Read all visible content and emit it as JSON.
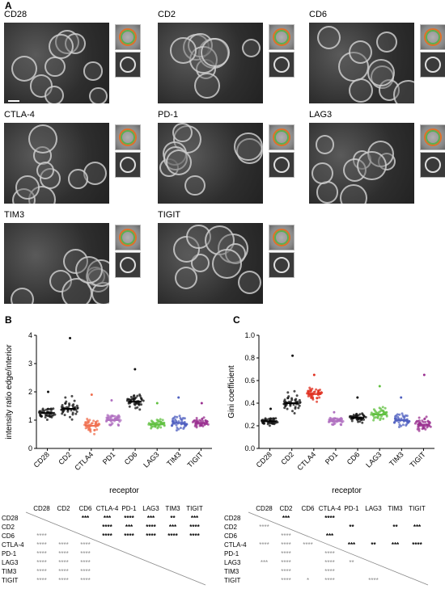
{
  "figure_labels": {
    "a": "A",
    "b": "B",
    "c": "C"
  },
  "panel_a": {
    "images": [
      {
        "name": "CD28"
      },
      {
        "name": "CD2"
      },
      {
        "name": "CD6"
      },
      {
        "name": "CTLA-4"
      },
      {
        "name": "PD-1"
      },
      {
        "name": "LAG3"
      },
      {
        "name": "TIM3"
      },
      {
        "name": "TIGIT"
      }
    ]
  },
  "chart_data": [
    {
      "type": "scatter",
      "panel": "B",
      "ylabel": "intensity ratio edge/interior",
      "xlabel": "receptor",
      "ylim": [
        0,
        4
      ],
      "yticks": [
        "0",
        "1",
        "2",
        "3",
        "4"
      ],
      "categories": [
        "CD28",
        "CD2",
        "CTLA4",
        "PD1",
        "CD6",
        "LAG3",
        "TIM3",
        "TIGIT"
      ],
      "colors": [
        "#111111",
        "#111111",
        "#f07050",
        "#b070c0",
        "#111111",
        "#60c040",
        "#5060c0",
        "#9a3090"
      ],
      "means": [
        1.25,
        1.4,
        0.8,
        1.0,
        1.65,
        0.85,
        0.9,
        0.9
      ],
      "spread": [
        0.3,
        0.55,
        0.35,
        0.3,
        0.45,
        0.25,
        0.3,
        0.25
      ],
      "max": [
        2.0,
        3.9,
        1.9,
        1.7,
        2.8,
        1.6,
        1.8,
        1.6
      ]
    },
    {
      "type": "scatter",
      "panel": "C",
      "ylabel": "Gini coefficient",
      "xlabel": "receptor",
      "ylim": [
        0,
        1.0
      ],
      "yticks": [
        "0.0",
        "0.2",
        "0.4",
        "0.6",
        "0.8",
        "1.0"
      ],
      "categories": [
        "CD28",
        "CD2",
        "CTLA4",
        "PD1",
        "CD6",
        "LAG3",
        "TIM3",
        "TIGIT"
      ],
      "colors": [
        "#111111",
        "#111111",
        "#e03020",
        "#b070c0",
        "#111111",
        "#60c040",
        "#5060c0",
        "#9a3090"
      ],
      "means": [
        0.24,
        0.4,
        0.48,
        0.24,
        0.27,
        0.3,
        0.25,
        0.21
      ],
      "spread": [
        0.05,
        0.13,
        0.08,
        0.05,
        0.07,
        0.09,
        0.07,
        0.09
      ],
      "max": [
        0.35,
        0.82,
        0.65,
        0.32,
        0.45,
        0.55,
        0.45,
        0.65
      ]
    }
  ],
  "sig_b": {
    "cols": [
      "CD28",
      "CD2",
      "CD6",
      "CTLA-4",
      "PD-1",
      "LAG3",
      "TIM3",
      "TIGIT"
    ],
    "rows": [
      {
        "label": "CD28",
        "cells": [
          "",
          "",
          "***",
          "***",
          "****",
          "***",
          "**",
          "***"
        ]
      },
      {
        "label": "CD2",
        "cells": [
          "",
          "",
          "",
          "****",
          "***",
          "****",
          "***",
          "****"
        ]
      },
      {
        "label": "CD6",
        "cells": [
          "****",
          "",
          "",
          "****",
          "****",
          "****",
          "****",
          "****"
        ]
      },
      {
        "label": "CTLA-4",
        "cells": [
          "****",
          "****",
          "****",
          "",
          "",
          "",
          "",
          ""
        ]
      },
      {
        "label": "PD-1",
        "cells": [
          "****",
          "****",
          "****",
          "",
          "",
          "",
          "",
          ""
        ]
      },
      {
        "label": "LAG3",
        "cells": [
          "****",
          "****",
          "****",
          "",
          "",
          "",
          "",
          ""
        ]
      },
      {
        "label": "TIM3",
        "cells": [
          "****",
          "****",
          "****",
          "",
          "",
          "",
          "",
          ""
        ]
      },
      {
        "label": "TIGIT",
        "cells": [
          "****",
          "****",
          "****",
          "",
          "",
          "",
          "",
          ""
        ]
      }
    ]
  },
  "sig_c": {
    "cols": [
      "CD28",
      "CD2",
      "CD6",
      "CTLA-4",
      "PD-1",
      "LAG3",
      "TIM3",
      "TIGIT"
    ],
    "rows": [
      {
        "label": "CD28",
        "cells": [
          "",
          "***",
          "",
          "****",
          "",
          "",
          "",
          ""
        ]
      },
      {
        "label": "CD2",
        "cells": [
          "****",
          "",
          "",
          "",
          "**",
          "",
          "**",
          "***"
        ]
      },
      {
        "label": "CD6",
        "cells": [
          "",
          "****",
          "",
          "***",
          "",
          "",
          "",
          ""
        ]
      },
      {
        "label": "CTLA-4",
        "cells": [
          "****",
          "****",
          "****",
          "",
          "***",
          "**",
          "***",
          "****"
        ]
      },
      {
        "label": "PD-1",
        "cells": [
          "",
          "****",
          "",
          "****",
          "",
          "",
          "",
          ""
        ]
      },
      {
        "label": "LAG3",
        "cells": [
          "***",
          "****",
          "",
          "****",
          "**",
          "",
          "",
          ""
        ]
      },
      {
        "label": "TIM3",
        "cells": [
          "",
          "****",
          "",
          "****",
          "",
          "",
          "",
          ""
        ]
      },
      {
        "label": "TIGIT",
        "cells": [
          "",
          "****",
          "*",
          "****",
          "",
          "****",
          "",
          ""
        ]
      }
    ]
  }
}
